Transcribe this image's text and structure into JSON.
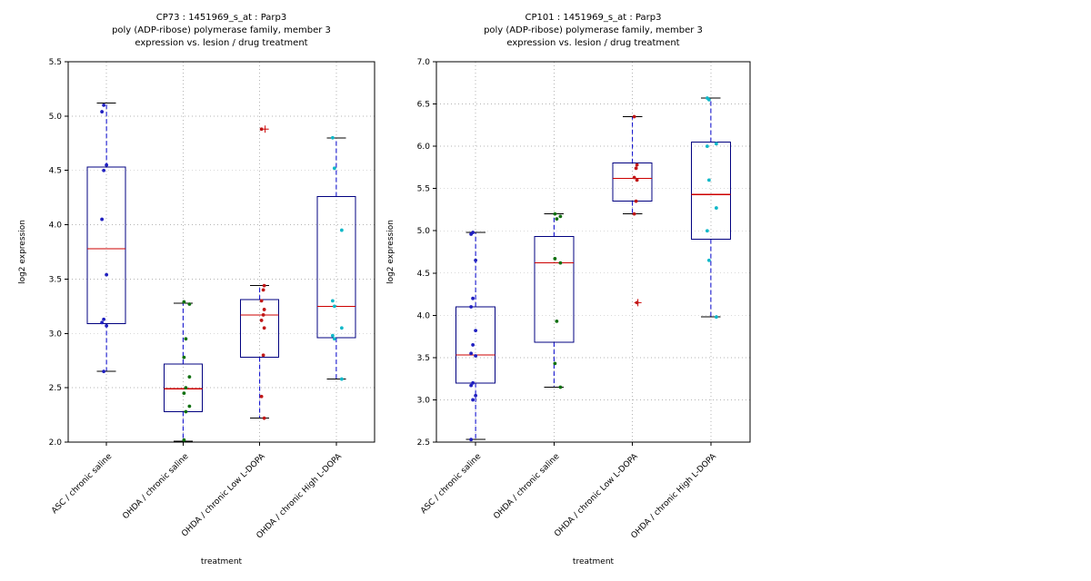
{
  "figure": {
    "xlabel": "treatment",
    "ylabel": "log2 expression",
    "categories": [
      "ASC / chronic saline",
      "OHDA / chronic saline",
      "OHDA / chronic Low L-DOPA",
      "OHDA / chronic High L-DOPA"
    ],
    "colors": {
      "box": "#000080",
      "whisker": "#0000cc",
      "median": "#cc0000",
      "cap": "#000000",
      "outlier": "#cc0000",
      "grid": "#b3b3b3",
      "axis": "#000000",
      "points": [
        "#2020c0",
        "#107010",
        "#c01818",
        "#10b8c8"
      ]
    }
  },
  "chart_data": [
    {
      "type": "box",
      "title_lines": [
        "CP73 : 1451969_s_at : Parp3",
        "poly (ADP-ribose) polymerase family, member 3",
        "expression vs. lesion / drug treatment"
      ],
      "xlabel": "treatment",
      "ylabel": "log2 expression",
      "ylim": [
        2.0,
        5.5
      ],
      "yticks": [
        "2.0",
        "2.5",
        "3.0",
        "3.5",
        "4.0",
        "4.5",
        "5.0",
        "5.5"
      ],
      "grid": true,
      "boxes": [
        {
          "category": "ASC / chronic saline",
          "whisker_low": 2.65,
          "q1": 3.09,
          "median": 3.78,
          "q3": 4.53,
          "whisker_high": 5.12,
          "outliers": [],
          "points": [
            5.1,
            5.04,
            4.55,
            4.5,
            4.05,
            3.54,
            3.13,
            3.1,
            3.07,
            2.65
          ]
        },
        {
          "category": "OHDA / chronic saline",
          "whisker_low": 2.01,
          "q1": 2.28,
          "median": 2.49,
          "q3": 2.72,
          "whisker_high": 3.28,
          "outliers": [],
          "points": [
            3.29,
            3.27,
            2.95,
            2.78,
            2.6,
            2.5,
            2.45,
            2.33,
            2.28,
            2.02
          ]
        },
        {
          "category": "OHDA / chronic Low L-DOPA",
          "whisker_low": 2.22,
          "q1": 2.78,
          "median": 3.17,
          "q3": 3.31,
          "whisker_high": 3.44,
          "outliers": [
            4.88
          ],
          "points": [
            4.88,
            3.44,
            3.4,
            3.3,
            3.22,
            3.17,
            3.12,
            3.05,
            2.8,
            2.42,
            2.22
          ]
        },
        {
          "category": "OHDA / chronic High L-DOPA",
          "whisker_low": 2.58,
          "q1": 2.96,
          "median": 3.25,
          "q3": 4.26,
          "whisker_high": 4.8,
          "outliers": [],
          "points": [
            4.8,
            4.52,
            3.95,
            3.3,
            3.25,
            3.05,
            2.98,
            2.95,
            2.58
          ]
        }
      ]
    },
    {
      "type": "box",
      "title_lines": [
        "CP101 : 1451969_s_at : Parp3",
        "poly (ADP-ribose) polymerase family, member 3",
        "expression vs. lesion / drug treatment"
      ],
      "xlabel": "treatment",
      "ylabel": "log2 expression",
      "ylim": [
        2.5,
        7.0
      ],
      "yticks": [
        "2.5",
        "3.0",
        "3.5",
        "4.0",
        "4.5",
        "5.0",
        "5.5",
        "6.0",
        "6.5",
        "7.0"
      ],
      "grid": true,
      "boxes": [
        {
          "category": "ASC / chronic saline",
          "whisker_low": 2.53,
          "q1": 3.2,
          "median": 3.53,
          "q3": 4.1,
          "whisker_high": 4.98,
          "outliers": [],
          "points": [
            4.98,
            4.96,
            4.65,
            4.2,
            4.1,
            3.82,
            3.65,
            3.55,
            3.52,
            3.2,
            3.17,
            3.05,
            3.0,
            2.53
          ]
        },
        {
          "category": "OHDA / chronic saline",
          "whisker_low": 3.15,
          "q1": 3.68,
          "median": 4.62,
          "q3": 4.93,
          "whisker_high": 5.2,
          "outliers": [],
          "points": [
            5.2,
            5.17,
            5.14,
            4.67,
            4.62,
            3.93,
            3.43,
            3.15
          ]
        },
        {
          "category": "OHDA / chronic Low L-DOPA",
          "whisker_low": 5.2,
          "q1": 5.35,
          "median": 5.62,
          "q3": 5.8,
          "whisker_high": 6.35,
          "outliers": [
            4.15
          ],
          "points": [
            6.35,
            5.78,
            5.74,
            5.63,
            5.6,
            5.35,
            5.2,
            4.15
          ]
        },
        {
          "category": "OHDA / chronic High L-DOPA",
          "whisker_low": 3.98,
          "q1": 4.9,
          "median": 5.43,
          "q3": 6.05,
          "whisker_high": 6.57,
          "outliers": [],
          "points": [
            6.57,
            6.55,
            6.03,
            6.0,
            5.6,
            5.27,
            5.0,
            4.65,
            3.98
          ]
        }
      ]
    }
  ]
}
